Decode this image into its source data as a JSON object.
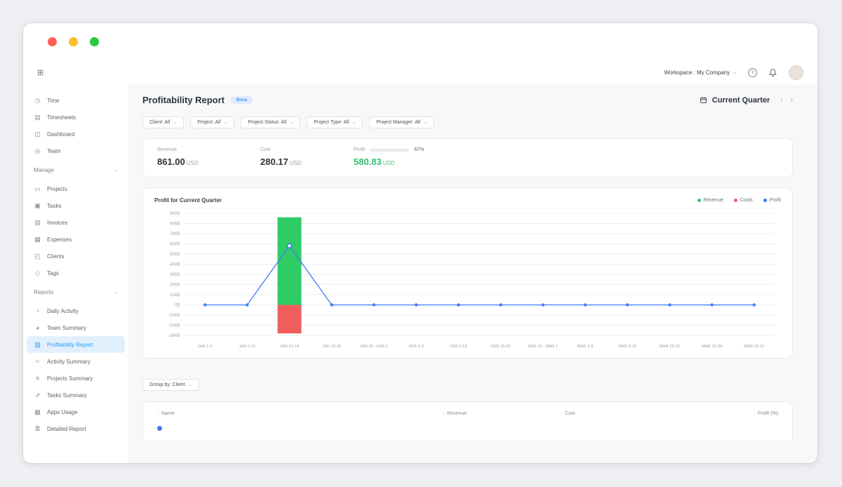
{
  "window": {
    "traffic_lights": [
      "#ff5f57",
      "#febc2e",
      "#28c840"
    ]
  },
  "ui": {
    "chevron_down": "⌄",
    "prev": "‹",
    "next": "›"
  },
  "topbar": {
    "collapse_icon": "⊞",
    "workspace_label": "Workspace : My Company",
    "help_glyph": "?"
  },
  "sidebar": {
    "items": [
      {
        "label": "Time",
        "icon_name": "clock-icon",
        "icon": "◷"
      },
      {
        "label": "Timesheets",
        "icon_name": "timesheet-icon",
        "icon": "▤"
      },
      {
        "label": "Dashboard",
        "icon_name": "dashboard-icon",
        "icon": "◫"
      },
      {
        "label": "Team",
        "icon_name": "team-icon",
        "icon": "◎"
      },
      {
        "label": "Manage",
        "type": "section"
      },
      {
        "label": "Projects",
        "icon_name": "folder-icon",
        "icon": "▭"
      },
      {
        "label": "Tasks",
        "icon_name": "tasks-icon",
        "icon": "▣"
      },
      {
        "label": "Invoices",
        "icon_name": "invoice-icon",
        "icon": "▤"
      },
      {
        "label": "Expenses",
        "icon_name": "expenses-icon",
        "icon": "▦"
      },
      {
        "label": "Clients",
        "icon_name": "clients-icon",
        "icon": "◰"
      },
      {
        "label": "Tags",
        "icon_name": "tag-icon",
        "icon": "◇"
      },
      {
        "label": "Reports",
        "type": "section"
      },
      {
        "label": "Daily Activity",
        "icon_name": "daily-activity-icon",
        "icon": "◔"
      },
      {
        "label": "Team Summary",
        "icon_name": "team-summary-icon",
        "icon": "◕"
      },
      {
        "label": "Profitability Report",
        "icon_name": "profitability-icon",
        "icon": "▥",
        "selected": true
      },
      {
        "label": "Activity Summary",
        "icon_name": "activity-summary-icon",
        "icon": "≈"
      },
      {
        "label": "Projects Summary",
        "icon_name": "projects-summary-icon",
        "icon": "≡"
      },
      {
        "label": "Tasks Summary",
        "icon_name": "tasks-summary-icon",
        "icon": "⇗"
      },
      {
        "label": "Apps Usage",
        "icon_name": "apps-usage-icon",
        "icon": "▩"
      },
      {
        "label": "Detailed Report",
        "icon_name": "detailed-report-icon",
        "icon": "≣"
      }
    ]
  },
  "header": {
    "title": "Profitability Report",
    "badge": "Beta",
    "period_label": "Current Quarter"
  },
  "filters": [
    {
      "label": "Client: All"
    },
    {
      "label": "Project: All"
    },
    {
      "label": "Project Status: All"
    },
    {
      "label": "Project Type: All"
    },
    {
      "label": "Project Manager: All"
    }
  ],
  "summary": {
    "revenue": {
      "label": "Revenue",
      "value": "861.00",
      "currency": "USD"
    },
    "cost": {
      "label": "Cost",
      "value": "280.17",
      "currency": "USD"
    },
    "profit": {
      "label": "Profit",
      "percent": "67%",
      "percent_value": 67,
      "value": "580.83",
      "currency": "USD"
    }
  },
  "chart": {
    "title": "Profit for Current Quarter",
    "legend": [
      {
        "label": "Revenue",
        "color": "#2fcc66"
      },
      {
        "label": "Costs",
        "color": "#ef5d5d"
      },
      {
        "label": "Profit",
        "color": "#3d7af5"
      }
    ]
  },
  "chart_data": {
    "type": "bar",
    "title": "Profit for Current Quarter",
    "categories": [
      "JAN 1-4",
      "JAN 5-11",
      "JAN 12-18",
      "JAN 19-25",
      "JAN 26 - FEB 1",
      "FEB 2-8",
      "FEB 9-15",
      "FEB 16-22",
      "FEB 23 - MAR 1",
      "MAR 2-8",
      "MAR 9-15",
      "MAR 16-22",
      "MAR 23-29",
      "MAR 30-31"
    ],
    "series": [
      {
        "name": "Revenue",
        "render": "bar",
        "color": "#2fcc66",
        "values": [
          0,
          0,
          861,
          0,
          0,
          0,
          0,
          0,
          0,
          0,
          0,
          0,
          0,
          0
        ]
      },
      {
        "name": "Costs",
        "render": "bar",
        "color": "#ef5d5d",
        "values": [
          0,
          0,
          -280.17,
          0,
          0,
          0,
          0,
          0,
          0,
          0,
          0,
          0,
          0,
          0
        ]
      },
      {
        "name": "Profit",
        "render": "line",
        "color": "#3d7af5",
        "values": [
          0,
          0,
          580.83,
          0,
          0,
          0,
          0,
          0,
          0,
          0,
          0,
          0,
          0,
          0
        ]
      }
    ],
    "ylim": [
      -300,
      900
    ],
    "yticks": [
      900,
      800,
      700,
      600,
      500,
      400,
      300,
      200,
      100,
      0,
      -100,
      -200,
      -300
    ],
    "ytick_suffix": "$",
    "grid": true,
    "legend_position": "top-right"
  },
  "groupby": {
    "label": "Group by: Client"
  },
  "table": {
    "sort_icon": "↑",
    "columns": [
      {
        "label": "Name"
      },
      {
        "label": "Revenue"
      },
      {
        "label": "Cost"
      },
      {
        "label": "Profit (%)"
      }
    ]
  }
}
